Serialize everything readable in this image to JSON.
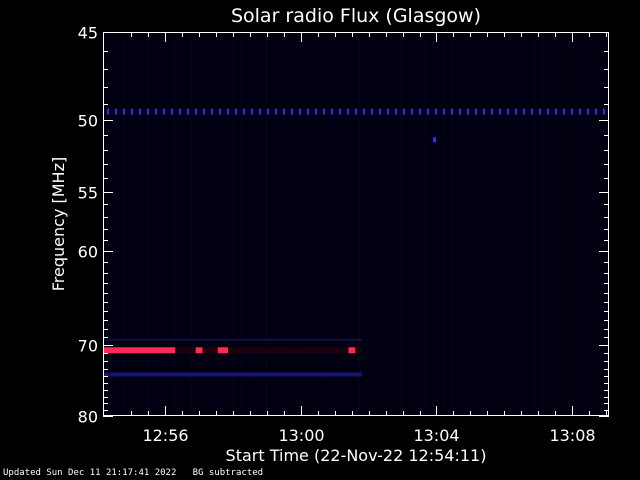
{
  "chart_data": {
    "type": "heatmap",
    "title": "Solar radio Flux (Glasgow)",
    "xlabel": "Start Time (22-Nov-22 12:54:11)",
    "ylabel": "Frequency [MHz]",
    "x_ticks": [
      "12:56",
      "13:00",
      "13:04",
      "13:08"
    ],
    "x_tick_minutes": [
      1.82,
      5.82,
      9.82,
      13.82
    ],
    "x_range_minutes": [
      0,
      14.9
    ],
    "y_ticks": [
      45,
      50,
      55,
      60,
      70,
      80
    ],
    "y_range_mhz": [
      45,
      80
    ],
    "y_scale": "reciprocal",
    "background_color": "#000010",
    "features": [
      {
        "name": "dotted-band",
        "freq_mhz": 49.5,
        "color": "#2a2aff"
      },
      {
        "name": "burst-band",
        "freq_mhz": 70.6,
        "color": "#ff2a55",
        "segments_minutes": [
          [
            0.0,
            2.1
          ],
          [
            2.7,
            2.9
          ],
          [
            3.35,
            3.65
          ],
          [
            7.2,
            7.4
          ]
        ]
      },
      {
        "name": "faint-band",
        "freq_mhz": 73.8,
        "color": "#1a1a8a"
      }
    ],
    "spot": {
      "freq_mhz": 51.3,
      "minute": 9.75,
      "color": "#3333ff"
    }
  },
  "footer": {
    "updated": "Updated Sun Dec 11 21:17:41 2022",
    "note": "BG subtracted"
  }
}
